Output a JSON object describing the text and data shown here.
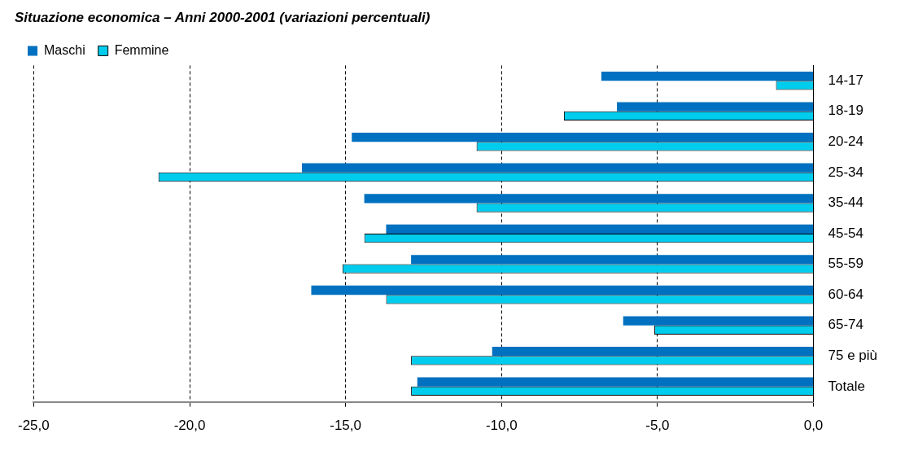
{
  "chart_data": {
    "type": "bar",
    "orientation": "horizontal",
    "title": "Situazione economica – Anni 2000-2001 (variazioni percentuali)",
    "categories": [
      "14-17",
      "18-19",
      "20-24",
      "25-34",
      "35-44",
      "45-54",
      "55-59",
      "60-64",
      "65-74",
      "75 e più",
      "Totale"
    ],
    "series": [
      {
        "name": "Maschi",
        "color": "#0070c0",
        "values": [
          -6.8,
          -6.3,
          -14.8,
          -16.4,
          -14.4,
          -13.7,
          -12.9,
          -16.1,
          -6.1,
          -10.3,
          -12.7
        ]
      },
      {
        "name": "Femmine",
        "color": "#00ccee",
        "values": [
          -1.2,
          -8.0,
          -10.8,
          -21.0,
          -10.8,
          -14.4,
          -15.1,
          -13.7,
          -5.1,
          -12.9,
          -12.9
        ]
      }
    ],
    "xlim": [
      -25,
      0
    ],
    "xticks": [
      {
        "value": -25,
        "label": "-25,0"
      },
      {
        "value": -20,
        "label": "-20,0"
      },
      {
        "value": -15,
        "label": "-15,0"
      },
      {
        "value": -10,
        "label": "-10,0"
      },
      {
        "value": -5,
        "label": "-5,0"
      },
      {
        "value": 0,
        "label": "0,0"
      }
    ],
    "grid": "x",
    "legend": "top left",
    "line_style": "dashed"
  }
}
